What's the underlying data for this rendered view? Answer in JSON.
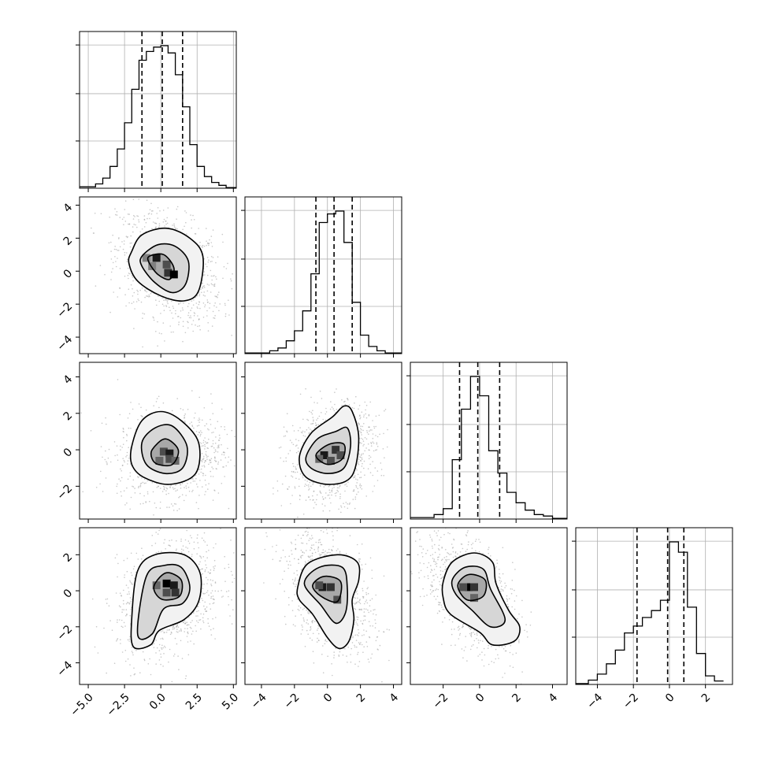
{
  "chart_data": {
    "type": "corner",
    "panels": 4,
    "variables": [
      {
        "range": [
          -5.6,
          5.2
        ],
        "ticks": [
          -5.0,
          -2.5,
          0.0,
          2.5,
          5.0
        ],
        "tick_labels": [
          "−5.0",
          "−2.5",
          "0.0",
          "2.5",
          "5.0"
        ],
        "quantiles": [
          -1.3,
          0.1,
          1.5
        ],
        "hist": {
          "edges": [
            -5.6,
            -4.5,
            -4.0,
            -3.5,
            -3.0,
            -2.5,
            -2.0,
            -1.5,
            -1.0,
            -0.5,
            0.0,
            0.5,
            1.0,
            1.5,
            2.0,
            2.5,
            3.0,
            3.5,
            4.0,
            4.5,
            5.2
          ],
          "counts": [
            0.01,
            0.03,
            0.07,
            0.15,
            0.27,
            0.45,
            0.68,
            0.88,
            0.94,
            0.97,
            0.98,
            0.93,
            0.78,
            0.56,
            0.3,
            0.15,
            0.08,
            0.04,
            0.02,
            0.005
          ]
        }
      },
      {
        "range": [
          -5.0,
          4.5
        ],
        "ticks": [
          -4,
          -2,
          0,
          2,
          4
        ],
        "tick_labels": [
          "−4",
          "−2",
          "0",
          "2",
          "4"
        ],
        "quantiles": [
          -0.7,
          0.4,
          1.5
        ],
        "hist": {
          "edges": [
            -5.0,
            -3.5,
            -3.0,
            -2.5,
            -2.0,
            -1.5,
            -1.0,
            -0.5,
            0.0,
            0.5,
            1.0,
            1.5,
            2.0,
            2.5,
            3.0,
            3.5,
            4.5
          ],
          "counts": [
            0.005,
            0.02,
            0.04,
            0.09,
            0.16,
            0.3,
            0.56,
            0.92,
            0.98,
            1.0,
            0.78,
            0.36,
            0.13,
            0.05,
            0.02,
            0.005
          ]
        }
      },
      {
        "range": [
          -3.8,
          4.8
        ],
        "ticks": [
          -2,
          0,
          2,
          4
        ],
        "tick_labels": [
          "−2",
          "0",
          "2",
          "4"
        ],
        "quantiles": [
          -1.1,
          -0.1,
          1.1
        ],
        "hist": {
          "edges": [
            -3.8,
            -2.5,
            -2.0,
            -1.5,
            -1.0,
            -0.5,
            0.0,
            0.5,
            1.0,
            1.5,
            2.0,
            2.5,
            3.0,
            3.5,
            4.0,
            4.8
          ],
          "counts": [
            0.01,
            0.03,
            0.07,
            0.4,
            0.74,
            0.96,
            0.83,
            0.46,
            0.31,
            0.18,
            0.11,
            0.06,
            0.03,
            0.02,
            0.005
          ]
        }
      },
      {
        "range": [
          -5.2,
          3.5
        ],
        "ticks": [
          -4,
          -2,
          0,
          2
        ],
        "tick_labels": [
          "−4",
          "−2",
          "0",
          "2"
        ],
        "quantiles": [
          -1.8,
          -0.1,
          0.8
        ],
        "hist": {
          "edges": [
            -5.2,
            -4.5,
            -4.0,
            -3.5,
            -3.0,
            -2.5,
            -2.0,
            -1.5,
            -1.0,
            -0.5,
            0.0,
            0.5,
            1.0,
            1.5,
            2.0,
            2.5,
            3.0
          ],
          "counts": [
            0.005,
            0.025,
            0.06,
            0.12,
            0.2,
            0.3,
            0.34,
            0.39,
            0.43,
            0.49,
            0.83,
            0.77,
            0.45,
            0.18,
            0.05,
            0.02
          ]
        }
      }
    ],
    "pairs": [
      {
        "row": 1,
        "col": 0,
        "mean": [
          0.6,
          0.2
        ],
        "sd": [
          1.8,
          1.7
        ],
        "rho": -0.35,
        "contours": [
          [
            [
              -2.0,
              1.2
            ],
            [
              -1.3,
              2.2
            ],
            [
              0.4,
              2.6
            ],
            [
              2.0,
              2.0
            ],
            [
              2.9,
              0.9
            ],
            [
              2.6,
              -1.2
            ],
            [
              1.6,
              -1.8
            ],
            [
              0.0,
              -1.5
            ],
            [
              -1.6,
              -0.6
            ],
            [
              -2.2,
              0.5
            ]
          ],
          [
            [
              -1.3,
              0.9
            ],
            [
              -0.2,
              1.6
            ],
            [
              1.0,
              1.5
            ],
            [
              1.9,
              0.6
            ],
            [
              1.7,
              -0.8
            ],
            [
              0.8,
              -1.3
            ],
            [
              -0.4,
              -0.7
            ],
            [
              -1.3,
              0.3
            ]
          ],
          [
            [
              -0.8,
              0.9
            ],
            [
              0.2,
              1.0
            ],
            [
              0.9,
              0.2
            ],
            [
              0.6,
              -0.5
            ],
            [
              -0.2,
              -0.2
            ],
            [
              -0.8,
              0.5
            ]
          ]
        ],
        "cells": [
          [
            -1.0,
            0.8,
            0.5
          ],
          [
            -0.3,
            0.8,
            0.9
          ],
          [
            0.4,
            0.4,
            0.7
          ],
          [
            0.5,
            -0.1,
            0.8
          ],
          [
            0.9,
            -0.2,
            1.0
          ],
          [
            -0.6,
            0.3,
            0.5
          ]
        ]
      },
      {
        "row": 2,
        "col": 0,
        "mean": [
          0.6,
          -0.3
        ],
        "sd": [
          1.8,
          1.2
        ],
        "rho": 0.05,
        "contours": [
          [
            [
              -2.0,
              0.2
            ],
            [
              -1.3,
              1.6
            ],
            [
              0.0,
              2.1
            ],
            [
              1.4,
              1.6
            ],
            [
              2.6,
              0.4
            ],
            [
              2.4,
              -1.3
            ],
            [
              0.6,
              -1.9
            ],
            [
              -1.2,
              -1.5
            ],
            [
              -2.0,
              -0.8
            ]
          ],
          [
            [
              -1.3,
              0.4
            ],
            [
              -0.4,
              1.2
            ],
            [
              0.8,
              1.3
            ],
            [
              1.8,
              0.2
            ],
            [
              1.5,
              -1.0
            ],
            [
              0.3,
              -1.3
            ],
            [
              -1.0,
              -0.8
            ]
          ],
          [
            [
              -0.6,
              0.0
            ],
            [
              0.3,
              0.6
            ],
            [
              1.2,
              0.0
            ],
            [
              0.8,
              -0.8
            ],
            [
              -0.2,
              -0.8
            ],
            [
              -0.6,
              -0.5
            ]
          ]
        ],
        "cells": [
          [
            0.2,
            -0.1,
            0.7
          ],
          [
            0.6,
            -0.2,
            0.9
          ],
          [
            0.6,
            -0.5,
            0.7
          ],
          [
            -0.1,
            -0.6,
            0.6
          ],
          [
            1.0,
            -0.6,
            0.6
          ]
        ]
      },
      {
        "row": 3,
        "col": 0,
        "mean": [
          0.6,
          -0.4
        ],
        "sd": [
          1.8,
          1.6
        ],
        "rho": 0.3,
        "contours": [
          [
            [
              -2.0,
              -1.5
            ],
            [
              -1.6,
              1.1
            ],
            [
              -0.4,
              2.0
            ],
            [
              1.6,
              2.0
            ],
            [
              2.7,
              1.0
            ],
            [
              2.6,
              -0.6
            ],
            [
              1.6,
              -1.6
            ],
            [
              -0.1,
              -2.2
            ],
            [
              -0.7,
              -3.0
            ],
            [
              -1.9,
              -3.1
            ]
          ],
          [
            [
              -1.6,
              -2.4
            ],
            [
              -1.0,
              0.8
            ],
            [
              0.2,
              1.4
            ],
            [
              1.4,
              1.3
            ],
            [
              2.0,
              0.2
            ],
            [
              1.5,
              -0.7
            ],
            [
              0.2,
              -1.0
            ],
            [
              -0.6,
              -2.4
            ]
          ],
          [
            [
              -0.4,
              0.4
            ],
            [
              0.4,
              1.0
            ],
            [
              1.4,
              0.6
            ],
            [
              1.3,
              -0.3
            ],
            [
              0.2,
              -0.5
            ],
            [
              -0.4,
              -0.1
            ]
          ]
        ],
        "cells": [
          [
            0.4,
            0.4,
            1.0
          ],
          [
            0.9,
            0.3,
            0.9
          ],
          [
            0.4,
            -0.1,
            0.7
          ],
          [
            1.0,
            -0.1,
            0.8
          ],
          [
            -0.3,
            0.3,
            0.6
          ]
        ]
      },
      {
        "row": 2,
        "col": 1,
        "mean": [
          0.3,
          -0.2
        ],
        "sd": [
          1.3,
          1.3
        ],
        "rho": 0.2,
        "contours": [
          [
            [
              -1.7,
              -0.4
            ],
            [
              -1.0,
              0.9
            ],
            [
              0.3,
              1.8
            ],
            [
              1.0,
              2.4
            ],
            [
              1.5,
              2.1
            ],
            [
              1.9,
              0.6
            ],
            [
              1.5,
              -1.4
            ],
            [
              0.2,
              -1.9
            ],
            [
              -1.3,
              -1.5
            ]
          ],
          [
            [
              -1.3,
              -0.4
            ],
            [
              -0.6,
              0.6
            ],
            [
              0.5,
              1.0
            ],
            [
              1.2,
              1.2
            ],
            [
              1.4,
              0.2
            ],
            [
              1.0,
              -1.0
            ],
            [
              0.0,
              -1.3
            ],
            [
              -1.0,
              -1.0
            ]
          ],
          [
            [
              -0.7,
              -0.3
            ],
            [
              0.1,
              0.3
            ],
            [
              1.0,
              0.3
            ],
            [
              0.9,
              -0.5
            ],
            [
              0.0,
              -0.8
            ]
          ]
        ],
        "cells": [
          [
            -0.2,
            -0.3,
            0.9
          ],
          [
            0.5,
            0.0,
            0.8
          ],
          [
            0.2,
            -0.6,
            0.7
          ],
          [
            -0.5,
            -0.5,
            0.6
          ],
          [
            0.8,
            -0.3,
            0.7
          ]
        ]
      },
      {
        "row": 3,
        "col": 1,
        "mean": [
          0.2,
          -0.2
        ],
        "sd": [
          1.3,
          1.7
        ],
        "rho": -0.4,
        "contours": [
          [
            [
              -1.8,
              0.2
            ],
            [
              -1.2,
              1.5
            ],
            [
              0.6,
              2.0
            ],
            [
              1.8,
              1.6
            ],
            [
              1.9,
              0.6
            ],
            [
              1.5,
              -0.5
            ],
            [
              1.6,
              -1.6
            ],
            [
              1.3,
              -2.8
            ],
            [
              0.7,
              -3.2
            ],
            [
              0.0,
              -2.6
            ],
            [
              -0.9,
              -1.3
            ],
            [
              -1.7,
              -0.5
            ]
          ],
          [
            [
              -1.4,
              0.4
            ],
            [
              -0.5,
              1.3
            ],
            [
              0.9,
              1.3
            ],
            [
              1.2,
              0.2
            ],
            [
              1.1,
              -1.2
            ],
            [
              0.5,
              -1.8
            ],
            [
              -0.4,
              -0.8
            ]
          ],
          [
            [
              -0.9,
              0.3
            ],
            [
              -0.2,
              0.8
            ],
            [
              0.8,
              0.5
            ],
            [
              0.6,
              -0.6
            ],
            [
              -0.4,
              -0.3
            ]
          ]
        ],
        "cells": [
          [
            -0.3,
            0.2,
            0.9
          ],
          [
            0.2,
            0.2,
            0.8
          ],
          [
            0.6,
            -0.5,
            0.7
          ],
          [
            -0.5,
            0.3,
            0.7
          ]
        ]
      },
      {
        "row": 3,
        "col": 2,
        "mean": [
          -0.5,
          -0.2
        ],
        "sd": [
          1.2,
          1.6
        ],
        "rho": -0.5,
        "contours": [
          [
            [
              -2.0,
              0.5
            ],
            [
              -1.5,
              1.6
            ],
            [
              -0.3,
              2.1
            ],
            [
              0.7,
              1.6
            ],
            [
              0.9,
              0.4
            ],
            [
              1.6,
              -1.1
            ],
            [
              2.2,
              -2.0
            ],
            [
              1.9,
              -2.8
            ],
            [
              0.7,
              -3.0
            ],
            [
              0.0,
              -2.3
            ],
            [
              -1.6,
              -1.3
            ],
            [
              -2.0,
              -0.4
            ]
          ],
          [
            [
              -1.5,
              0.6
            ],
            [
              -0.8,
              1.3
            ],
            [
              0.2,
              1.2
            ],
            [
              0.6,
              0.1
            ],
            [
              1.4,
              -1.6
            ],
            [
              0.6,
              -2.0
            ],
            [
              -0.4,
              -1.1
            ],
            [
              -1.3,
              -0.2
            ]
          ],
          [
            [
              -1.2,
              0.3
            ],
            [
              -0.6,
              0.9
            ],
            [
              0.3,
              0.6
            ],
            [
              0.2,
              -0.3
            ],
            [
              -0.7,
              -0.5
            ]
          ]
        ],
        "cells": [
          [
            -0.6,
            0.2,
            1.0
          ],
          [
            -0.3,
            0.2,
            0.8
          ],
          [
            -0.9,
            0.2,
            0.7
          ],
          [
            -0.3,
            -0.4,
            0.6
          ]
        ]
      }
    ]
  }
}
